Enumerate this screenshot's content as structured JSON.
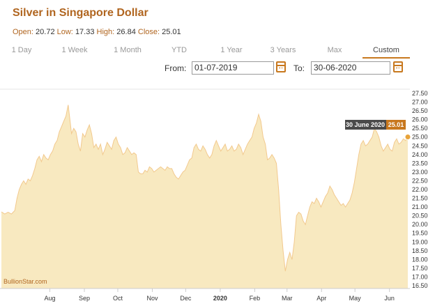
{
  "header": {
    "title": "Silver in Singapore Dollar",
    "open_label": "Open:",
    "open_value": "20.72",
    "low_label": "Low:",
    "low_value": "17.33",
    "high_label": "High:",
    "high_value": "26.84",
    "close_label": "Close:",
    "close_value": "25.01"
  },
  "tabs": [
    {
      "label": "1 Day"
    },
    {
      "label": "1 Week"
    },
    {
      "label": "1 Month"
    },
    {
      "label": "YTD"
    },
    {
      "label": "1 Year"
    },
    {
      "label": "3 Years"
    },
    {
      "label": "Max"
    },
    {
      "label": "Custom"
    }
  ],
  "active_tab": "Custom",
  "range": {
    "from_label": "From:",
    "from_value": "01-07-2019",
    "to_label": "To:",
    "to_value": "30-06-2020"
  },
  "colors": {
    "accent": "#c8781e",
    "area_fill": "#f8e9c0",
    "line": "#f2c98e",
    "tooltip_dark": "#4a4a4a"
  },
  "chart_data": {
    "type": "area",
    "title": "Silver in Singapore Dollar",
    "watermark": "BullionStar.com",
    "x_ticks": [
      {
        "label": "Aug",
        "t": 31,
        "bold": false
      },
      {
        "label": "Sep",
        "t": 62,
        "bold": false
      },
      {
        "label": "Oct",
        "t": 92,
        "bold": false
      },
      {
        "label": "Nov",
        "t": 123,
        "bold": false
      },
      {
        "label": "Dec",
        "t": 153,
        "bold": false
      },
      {
        "label": "2020",
        "t": 184,
        "bold": true
      },
      {
        "label": "Feb",
        "t": 215,
        "bold": false
      },
      {
        "label": "Mar",
        "t": 244,
        "bold": false
      },
      {
        "label": "Apr",
        "t": 275,
        "bold": false
      },
      {
        "label": "May",
        "t": 305,
        "bold": false
      },
      {
        "label": "Jun",
        "t": 336,
        "bold": false
      }
    ],
    "t_range": [
      0,
      365
    ],
    "ylim": [
      16.5,
      27.5
    ],
    "y_ticks": [
      "16.50",
      "17.00",
      "17.50",
      "18.00",
      "18.50",
      "19.00",
      "19.50",
      "20.00",
      "20.50",
      "21.00",
      "21.50",
      "22.00",
      "22.50",
      "23.00",
      "23.50",
      "24.00",
      "24.50",
      "25.00",
      "25.50",
      "26.00",
      "26.50",
      "27.00",
      "27.50"
    ],
    "y_tick_values": [
      16.5,
      17,
      17.5,
      18,
      18.5,
      19,
      19.5,
      20,
      20.5,
      21,
      21.5,
      22,
      22.5,
      23,
      23.5,
      24,
      24.5,
      25,
      25.5,
      26,
      26.5,
      27,
      27.5
    ],
    "series": [
      {
        "values": [
          [
            0,
            20.72
          ],
          [
            3,
            20.6
          ],
          [
            6,
            20.7
          ],
          [
            9,
            20.6
          ],
          [
            12,
            20.8
          ],
          [
            14,
            21.5
          ],
          [
            16,
            22.0
          ],
          [
            18,
            22.3
          ],
          [
            20,
            22.5
          ],
          [
            22,
            22.3
          ],
          [
            24,
            22.6
          ],
          [
            26,
            22.5
          ],
          [
            28,
            22.8
          ],
          [
            30,
            23.2
          ],
          [
            32,
            23.7
          ],
          [
            34,
            23.9
          ],
          [
            36,
            23.6
          ],
          [
            38,
            24.0
          ],
          [
            40,
            23.8
          ],
          [
            42,
            23.7
          ],
          [
            44,
            24.0
          ],
          [
            46,
            24.2
          ],
          [
            48,
            24.6
          ],
          [
            50,
            24.8
          ],
          [
            52,
            25.3
          ],
          [
            54,
            25.6
          ],
          [
            56,
            25.9
          ],
          [
            58,
            26.2
          ],
          [
            60,
            26.84
          ],
          [
            61,
            26.3
          ],
          [
            63,
            25.2
          ],
          [
            65,
            25.5
          ],
          [
            67,
            25.3
          ],
          [
            69,
            24.6
          ],
          [
            71,
            24.2
          ],
          [
            73,
            25.2
          ],
          [
            75,
            25.0
          ],
          [
            77,
            25.4
          ],
          [
            79,
            25.7
          ],
          [
            81,
            25.2
          ],
          [
            83,
            24.4
          ],
          [
            85,
            24.6
          ],
          [
            87,
            24.3
          ],
          [
            89,
            24.6
          ],
          [
            91,
            24.0
          ],
          [
            93,
            24.3
          ],
          [
            95,
            24.7
          ],
          [
            97,
            24.5
          ],
          [
            99,
            24.3
          ],
          [
            101,
            24.8
          ],
          [
            103,
            25.0
          ],
          [
            105,
            24.6
          ],
          [
            107,
            24.4
          ],
          [
            109,
            24.0
          ],
          [
            111,
            24.1
          ],
          [
            113,
            24.4
          ],
          [
            115,
            24.2
          ],
          [
            117,
            24.0
          ],
          [
            119,
            24.1
          ],
          [
            121,
            24.0
          ],
          [
            123,
            23.0
          ],
          [
            125,
            22.9
          ],
          [
            127,
            22.9
          ],
          [
            129,
            23.1
          ],
          [
            131,
            23.0
          ],
          [
            133,
            23.3
          ],
          [
            135,
            23.2
          ],
          [
            137,
            23.0
          ],
          [
            139,
            23.1
          ],
          [
            141,
            23.2
          ],
          [
            143,
            23.3
          ],
          [
            145,
            23.2
          ],
          [
            147,
            23.1
          ],
          [
            149,
            23.3
          ],
          [
            151,
            23.2
          ],
          [
            153,
            23.2
          ],
          [
            155,
            22.9
          ],
          [
            157,
            22.7
          ],
          [
            159,
            22.6
          ],
          [
            161,
            22.8
          ],
          [
            163,
            23.0
          ],
          [
            165,
            23.1
          ],
          [
            167,
            23.4
          ],
          [
            169,
            23.7
          ],
          [
            171,
            23.8
          ],
          [
            173,
            24.4
          ],
          [
            175,
            24.6
          ],
          [
            177,
            24.3
          ],
          [
            179,
            24.2
          ],
          [
            181,
            24.5
          ],
          [
            183,
            24.3
          ],
          [
            185,
            24.0
          ],
          [
            187,
            23.8
          ],
          [
            189,
            24.0
          ],
          [
            191,
            24.5
          ],
          [
            193,
            24.8
          ],
          [
            195,
            24.5
          ],
          [
            197,
            24.2
          ],
          [
            199,
            24.4
          ],
          [
            201,
            24.6
          ],
          [
            203,
            24.2
          ],
          [
            205,
            24.3
          ],
          [
            207,
            24.5
          ],
          [
            209,
            24.2
          ],
          [
            211,
            24.3
          ],
          [
            213,
            24.6
          ],
          [
            215,
            24.4
          ],
          [
            217,
            24.0
          ],
          [
            219,
            24.3
          ],
          [
            221,
            24.6
          ],
          [
            223,
            24.8
          ],
          [
            225,
            25.0
          ],
          [
            227,
            25.5
          ],
          [
            229,
            25.8
          ],
          [
            231,
            26.3
          ],
          [
            233,
            25.9
          ],
          [
            235,
            25.0
          ],
          [
            237,
            24.6
          ],
          [
            239,
            23.7
          ],
          [
            241,
            23.8
          ],
          [
            243,
            24.0
          ],
          [
            245,
            23.8
          ],
          [
            247,
            23.5
          ],
          [
            249,
            22.0
          ],
          [
            251,
            20.0
          ],
          [
            253,
            18.5
          ],
          [
            255,
            17.33
          ],
          [
            257,
            18.0
          ],
          [
            259,
            18.4
          ],
          [
            261,
            18.0
          ],
          [
            263,
            19.0
          ],
          [
            265,
            20.5
          ],
          [
            267,
            20.7
          ],
          [
            269,
            20.6
          ],
          [
            271,
            20.2
          ],
          [
            273,
            20.0
          ],
          [
            275,
            20.5
          ],
          [
            277,
            21.0
          ],
          [
            279,
            21.3
          ],
          [
            281,
            21.2
          ],
          [
            283,
            21.5
          ],
          [
            285,
            21.3
          ],
          [
            287,
            21.0
          ],
          [
            289,
            21.3
          ],
          [
            291,
            21.6
          ],
          [
            293,
            21.8
          ],
          [
            295,
            22.2
          ],
          [
            297,
            22.0
          ],
          [
            299,
            21.7
          ],
          [
            301,
            21.5
          ],
          [
            303,
            21.3
          ],
          [
            305,
            21.1
          ],
          [
            307,
            21.2
          ],
          [
            309,
            21.0
          ],
          [
            311,
            21.2
          ],
          [
            313,
            21.4
          ],
          [
            315,
            21.8
          ],
          [
            317,
            22.4
          ],
          [
            319,
            23.2
          ],
          [
            321,
            24.0
          ],
          [
            323,
            24.6
          ],
          [
            325,
            24.8
          ],
          [
            327,
            24.5
          ],
          [
            329,
            24.6
          ],
          [
            331,
            24.8
          ],
          [
            333,
            25.0
          ],
          [
            335,
            25.5
          ],
          [
            337,
            25.3
          ],
          [
            339,
            25.0
          ],
          [
            341,
            24.5
          ],
          [
            343,
            24.2
          ],
          [
            345,
            24.4
          ],
          [
            347,
            24.6
          ],
          [
            349,
            24.3
          ],
          [
            351,
            24.2
          ],
          [
            353,
            24.7
          ],
          [
            355,
            24.9
          ],
          [
            357,
            24.6
          ],
          [
            359,
            24.7
          ],
          [
            361,
            24.9
          ],
          [
            363,
            24.8
          ],
          [
            365,
            25.01
          ]
        ]
      }
    ],
    "tooltip": {
      "date": "30 June 2020",
      "value": "25.01"
    }
  }
}
